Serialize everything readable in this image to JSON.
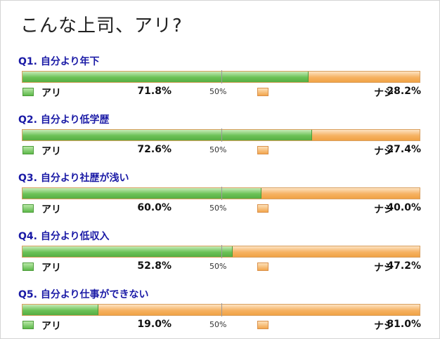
{
  "title": "こんな上司、アリ?",
  "labels": {
    "yes": "アリ",
    "no": "ナシ",
    "mid": "50%"
  },
  "colors": {
    "yes": "#5db94a",
    "no": "#f3a64d",
    "question": "#1a1aa6"
  },
  "chart_data": {
    "type": "bar",
    "stacked": true,
    "orientation": "horizontal",
    "title": "こんな上司、アリ?",
    "categories": [
      "Q1. 自分より年下",
      "Q2. 自分より低学歴",
      "Q3. 自分より社歴が浅い",
      "Q4. 自分より低収入",
      "Q5. 自分より仕事ができない"
    ],
    "series": [
      {
        "name": "アリ",
        "values": [
          71.8,
          72.6,
          60.0,
          52.8,
          19.0
        ],
        "display": [
          "71.8%",
          "72.6%",
          "60.0%",
          "52.8%",
          "19.0%"
        ]
      },
      {
        "name": "ナシ",
        "values": [
          28.2,
          27.4,
          40.0,
          47.2,
          81.0
        ],
        "display": [
          "28.2%",
          "27.4%",
          "40.0%",
          "47.2%",
          "81.0%"
        ]
      }
    ],
    "xlim": [
      0,
      100
    ],
    "reference_line": 50
  }
}
